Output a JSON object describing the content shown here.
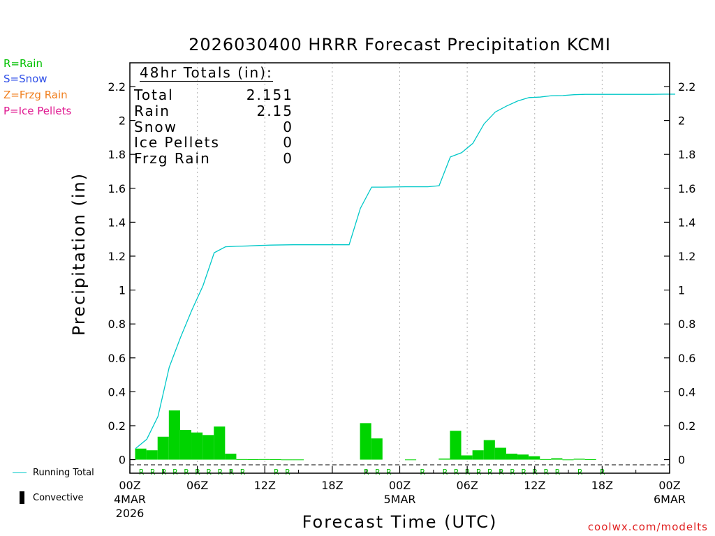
{
  "chart_data": {
    "type": "bar",
    "title": "2026030400 HRRR Forecast Precipitation KCMI",
    "ylabel": "Precipitation (in)",
    "xlabel": "Forecast Time (UTC)",
    "ylim": [
      -0.08,
      2.34
    ],
    "xlim": [
      0,
      48
    ],
    "yticks": [
      {
        "v": 0,
        "label": "0"
      },
      {
        "v": 0.2,
        "label": "0.2"
      },
      {
        "v": 0.4,
        "label": "0.4"
      },
      {
        "v": 0.6,
        "label": "0.6"
      },
      {
        "v": 0.8,
        "label": "0.8"
      },
      {
        "v": 1.0,
        "label": "1"
      },
      {
        "v": 1.2,
        "label": "1.2"
      },
      {
        "v": 1.4,
        "label": "1.4"
      },
      {
        "v": 1.6,
        "label": "1.6"
      },
      {
        "v": 1.8,
        "label": "1.8"
      },
      {
        "v": 2.0,
        "label": "2"
      },
      {
        "v": 2.2,
        "label": "2.2"
      }
    ],
    "xticks": [
      {
        "h": 0,
        "lines": [
          "00Z",
          "4MAR",
          "2026"
        ]
      },
      {
        "h": 6,
        "lines": [
          "06Z"
        ]
      },
      {
        "h": 12,
        "lines": [
          "12Z"
        ]
      },
      {
        "h": 18,
        "lines": [
          "18Z"
        ]
      },
      {
        "h": 24,
        "lines": [
          "00Z",
          "5MAR"
        ]
      },
      {
        "h": 30,
        "lines": [
          "06Z"
        ]
      },
      {
        "h": 36,
        "lines": [
          "12Z"
        ]
      },
      {
        "h": 42,
        "lines": [
          "18Z"
        ]
      },
      {
        "h": 48,
        "lines": [
          "00Z",
          "6MAR"
        ]
      }
    ],
    "hourly_precip": [
      0.065,
      0.055,
      0.135,
      0.29,
      0.175,
      0.16,
      0.145,
      0.195,
      0.035,
      0.003,
      0.002,
      0.003,
      0.002,
      0.001,
      0.001,
      0.0,
      0.0,
      0.0,
      0.0,
      0.0,
      0.215,
      0.125,
      0.0,
      0.0,
      0.001,
      0.0,
      0.0,
      0.006,
      0.17,
      0.025,
      0.055,
      0.115,
      0.07,
      0.035,
      0.03,
      0.02,
      0.003,
      0.008,
      0.001,
      0.005,
      0.002,
      0.0,
      0.0,
      0.0,
      0.0,
      0.0,
      0.0,
      0.0
    ],
    "running_total": {
      "name": "Running Total",
      "x": [
        0,
        1,
        2,
        3,
        4,
        5,
        6,
        7,
        8,
        9,
        10,
        11,
        12,
        13,
        14,
        15,
        16,
        17,
        18,
        19,
        20,
        21,
        22,
        23,
        24,
        25,
        26,
        27,
        28,
        29,
        30,
        31,
        32,
        33,
        34,
        35,
        36,
        37,
        38,
        39,
        40,
        41,
        42,
        43,
        44,
        45,
        46,
        47,
        48
      ],
      "values": [
        0.065,
        0.12,
        0.255,
        0.545,
        0.72,
        0.88,
        1.025,
        1.22,
        1.255,
        1.258,
        1.26,
        1.263,
        1.265,
        1.266,
        1.267,
        1.267,
        1.267,
        1.267,
        1.267,
        1.267,
        1.482,
        1.607,
        1.607,
        1.608,
        1.609,
        1.609,
        1.609,
        1.615,
        1.785,
        1.81,
        1.865,
        1.98,
        2.05,
        2.085,
        2.115,
        2.135,
        2.138,
        2.146,
        2.147,
        2.152,
        2.154,
        2.154,
        2.154,
        2.154,
        2.154,
        2.154,
        2.154,
        2.155,
        2.155
      ]
    },
    "ptype_markers": {
      "hours": [
        1,
        2,
        3,
        4,
        5,
        6,
        7,
        8,
        9,
        10,
        13,
        14,
        21,
        22,
        23,
        26,
        28,
        29,
        30,
        31,
        32,
        33,
        34,
        35,
        36,
        37,
        38,
        40,
        42
      ],
      "letter": "R"
    },
    "colors": {
      "bars": "#00d400",
      "running_total": "#00c8c8",
      "rain_marker": "#00c000",
      "grid": "#b0b0b0"
    },
    "grid": true
  },
  "ptype_legend": [
    {
      "label": "R=Rain",
      "color": "#00c000"
    },
    {
      "label": "S=Snow",
      "color": "#3050e8"
    },
    {
      "label": "Z=Frzg Rain",
      "color": "#f08020"
    },
    {
      "label": "P=Ice Pellets",
      "color": "#e01890"
    }
  ],
  "totals_box": {
    "header": "48hr Totals (in):",
    "rows": [
      {
        "label": "Total",
        "value": "2.151"
      },
      {
        "label": "Rain",
        "value": "2.15"
      },
      {
        "label": "Snow",
        "value": "0"
      },
      {
        "label": "Ice Pellets",
        "value": "0"
      },
      {
        "label": "Frzg Rain",
        "value": "0"
      }
    ]
  },
  "legend": {
    "running_total_label": "Running Total",
    "convective_label": "Convective"
  },
  "credit": "coolwx.com/modelts"
}
